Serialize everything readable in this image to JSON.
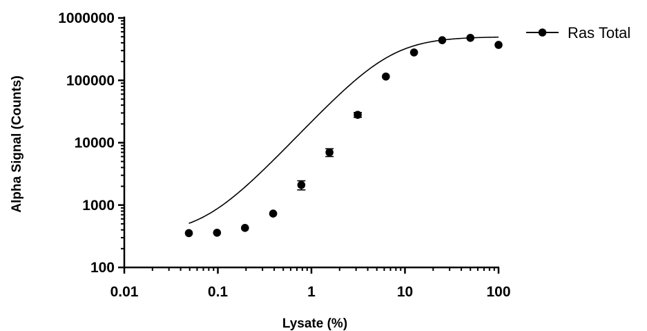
{
  "chart_data": {
    "type": "scatter",
    "xlabel": "Lysate (%)",
    "ylabel": "Alpha Signal (Counts)",
    "xscale": "log",
    "yscale": "log",
    "xlim": [
      0.01,
      100
    ],
    "ylim": [
      100,
      1000000
    ],
    "x_ticks": [
      "0.01",
      "0.1",
      "1",
      "10",
      "100"
    ],
    "y_ticks": [
      "100",
      "1000",
      "10000",
      "100000",
      "1000000"
    ],
    "grid": false,
    "legend_position": "top-right",
    "series": [
      {
        "name": "Ras Total",
        "color": "#000000",
        "marker": "filled-circle",
        "x": [
          0.049,
          0.098,
          0.195,
          0.39,
          0.78,
          1.56,
          3.125,
          6.25,
          12.5,
          25,
          50,
          100
        ],
        "y": [
          355,
          360,
          430,
          730,
          2100,
          7000,
          28000,
          115000,
          280000,
          440000,
          480000,
          370000
        ],
        "error": [
          15,
          15,
          20,
          40,
          350,
          1000,
          2500,
          8000,
          20000,
          25000,
          30000,
          30000
        ],
        "fit": {
          "model": "sigmoidal dose-response",
          "bottom": 330,
          "top": 500000,
          "ec50": 7.0,
          "hill": 1.6
        }
      }
    ]
  }
}
